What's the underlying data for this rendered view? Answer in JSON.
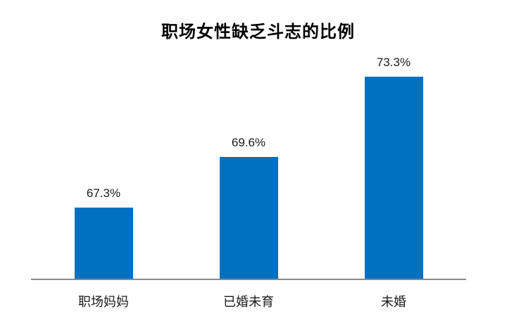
{
  "chart_data": {
    "type": "bar",
    "title": "职场女性缺乏斗志的比例",
    "categories": [
      "职场妈妈",
      "已婚未育",
      "未婚"
    ],
    "values": [
      67.3,
      69.6,
      73.3
    ],
    "data_labels": [
      "67.3%",
      "69.6%",
      "73.3%"
    ],
    "unit": "%",
    "ylim": [
      64,
      74
    ],
    "grid": false,
    "legend": "none",
    "y_axis_visible": false,
    "x_axis_visible": true,
    "bar_color": "#0070C0",
    "axis_color": "#8A8A8A",
    "label_color": "#1a1a1a",
    "title_color": "#000000"
  }
}
